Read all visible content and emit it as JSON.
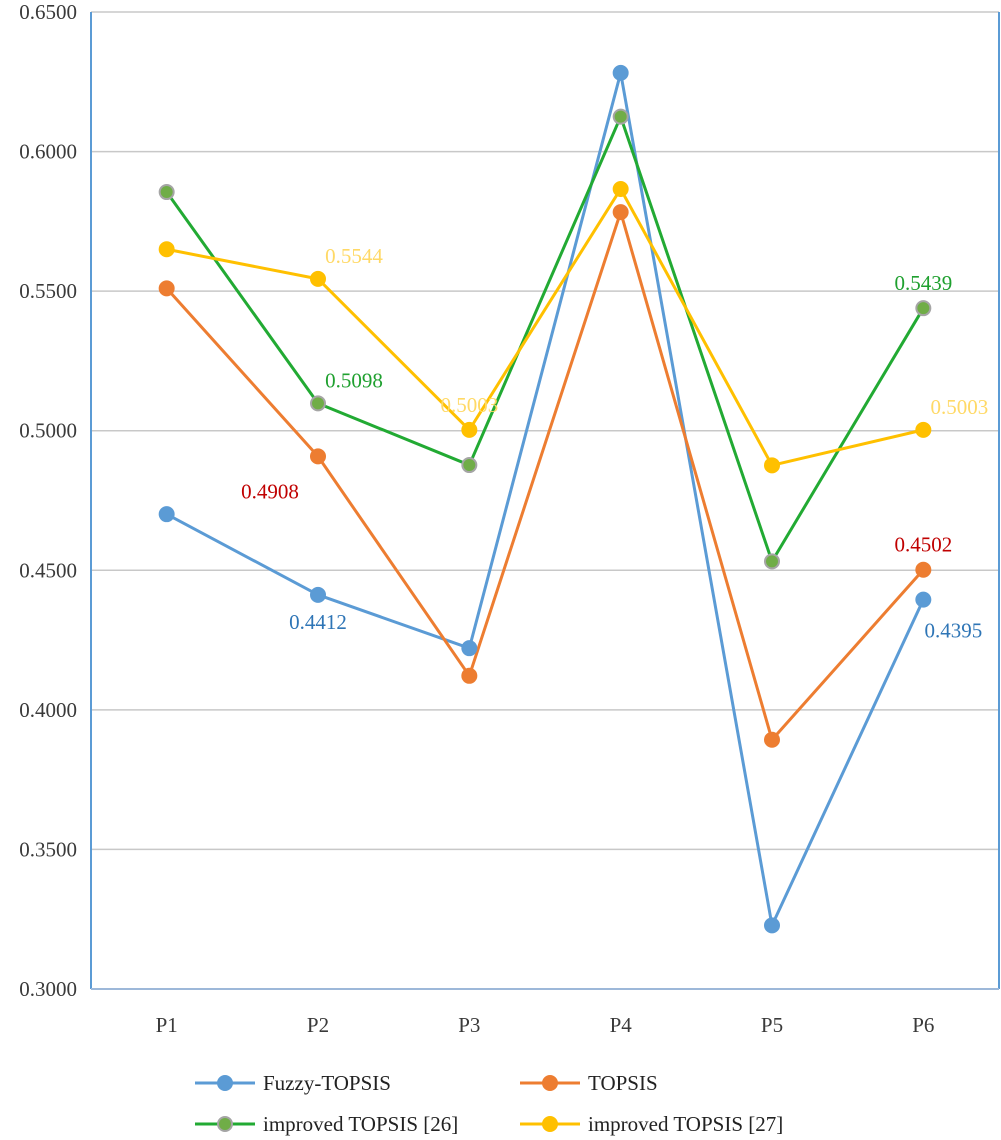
{
  "chart_data": {
    "type": "line",
    "title": "",
    "xlabel": "",
    "ylabel": "",
    "categories": [
      "P1",
      "P2",
      "P3",
      "P4",
      "P5",
      "P6"
    ],
    "ylim": [
      0.3,
      0.65
    ],
    "yticks": [
      0.3,
      0.35,
      0.4,
      0.45,
      0.5,
      0.55,
      0.6,
      0.65
    ],
    "ytick_labels": [
      "0.3000",
      "0.3500",
      "0.4000",
      "0.4500",
      "0.5000",
      "0.5500",
      "0.6000",
      "0.6500"
    ],
    "grid": true,
    "legend_position": "bottom",
    "series": [
      {
        "name": "Fuzzy-TOPSIS",
        "color": "#5B9BD5",
        "marker_edge": "#5B9BD5",
        "label_color": "#2E75B6",
        "values": [
          0.4701,
          0.4412,
          0.4221,
          0.6282,
          0.3228,
          0.4395
        ]
      },
      {
        "name": "TOPSIS",
        "color": "#ED7D31",
        "marker_edge": "#ED7D31",
        "label_color": "#C00000",
        "values": [
          0.551,
          0.4908,
          0.4122,
          0.5783,
          0.3893,
          0.4502
        ]
      },
      {
        "name": "improved TOPSIS [26]",
        "color": "#22AA33",
        "marker_fill": "#70AD47",
        "marker_edge": "#A5A5A5",
        "label_color": "#1FA02F",
        "values": [
          0.5855,
          0.5098,
          0.4877,
          0.6125,
          0.4532,
          0.5439
        ]
      },
      {
        "name": "improved TOPSIS [27]",
        "color": "#FFC000",
        "marker_edge": "#FFC000",
        "label_color": "#FFD966",
        "values": [
          0.565,
          0.5544,
          0.5003,
          0.5866,
          0.4876,
          0.5003
        ]
      }
    ],
    "annotations": [
      {
        "series": 0,
        "index": 1,
        "text": "0.4412",
        "anchor": "below"
      },
      {
        "series": 0,
        "index": 5,
        "text": "0.4395",
        "anchor": "below-right"
      },
      {
        "series": 1,
        "index": 1,
        "text": "0.4908",
        "anchor": "below-left"
      },
      {
        "series": 1,
        "index": 5,
        "text": "0.4502",
        "anchor": "above"
      },
      {
        "series": 2,
        "index": 1,
        "text": "0.5098",
        "anchor": "above-right"
      },
      {
        "series": 2,
        "index": 5,
        "text": "0.5439",
        "anchor": "above"
      },
      {
        "series": 3,
        "index": 1,
        "text": "0.5544",
        "anchor": "above-right"
      },
      {
        "series": 3,
        "index": 2,
        "text": "0.5003",
        "anchor": "above"
      },
      {
        "series": 3,
        "index": 5,
        "text": "0.5003",
        "anchor": "above-right"
      }
    ]
  },
  "colors": {
    "axis": "#5B9BD5",
    "grid": "#C8C8C8",
    "background": "#FFFFFF"
  }
}
